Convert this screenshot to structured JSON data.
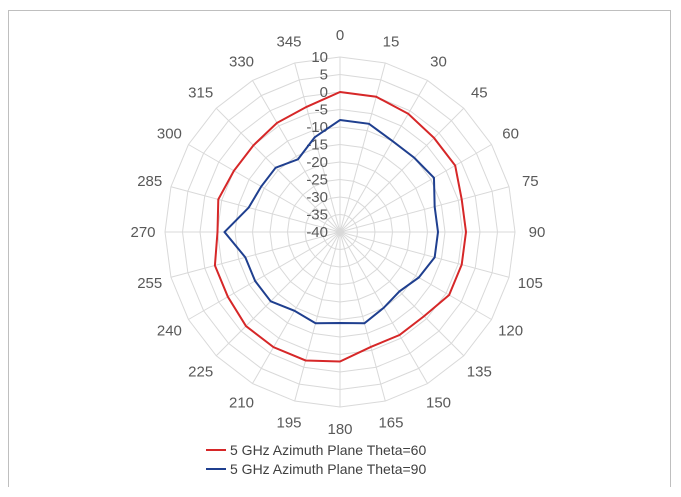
{
  "chart_data": {
    "type": "radar",
    "title": "",
    "angles": [
      0,
      15,
      30,
      45,
      60,
      75,
      90,
      105,
      120,
      135,
      150,
      165,
      180,
      195,
      210,
      225,
      240,
      255,
      270,
      285,
      300,
      315,
      330,
      345
    ],
    "angle_labels": [
      "0",
      "15",
      "30",
      "45",
      "60",
      "75",
      "90",
      "105",
      "120",
      "135",
      "150",
      "165",
      "180",
      "195",
      "210",
      "225",
      "240",
      "255",
      "270",
      "285",
      "300",
      "315",
      "330",
      "345"
    ],
    "radial_ticks": [
      "10",
      "5",
      "0",
      "-5",
      "-10",
      "-15",
      "-20",
      "-25",
      "-30",
      "-35",
      "-40"
    ],
    "rlim": [
      -40,
      10
    ],
    "grid": true,
    "legend_position": "bottom",
    "series": [
      {
        "name": "5 GHz Azimuth Plane Theta=60",
        "color": "#d62728",
        "values": [
          0,
          0,
          -1,
          -2,
          -2,
          -4,
          -4,
          -4,
          -4,
          -6,
          -6,
          -6,
          -3,
          -2,
          -2,
          -2,
          -3,
          -3,
          -5,
          -4,
          -5,
          -5,
          -4,
          -3
        ]
      },
      {
        "name": "5 GHz Azimuth Plane Theta=90",
        "color": "#1f3f8f",
        "values": [
          -8,
          -8,
          -10,
          -10,
          -9,
          -12,
          -12,
          -12,
          -14,
          -16,
          -15,
          -13,
          -14,
          -13,
          -14,
          -12,
          -12,
          -12,
          -7,
          -13,
          -14,
          -14,
          -16,
          -12
        ]
      }
    ]
  }
}
